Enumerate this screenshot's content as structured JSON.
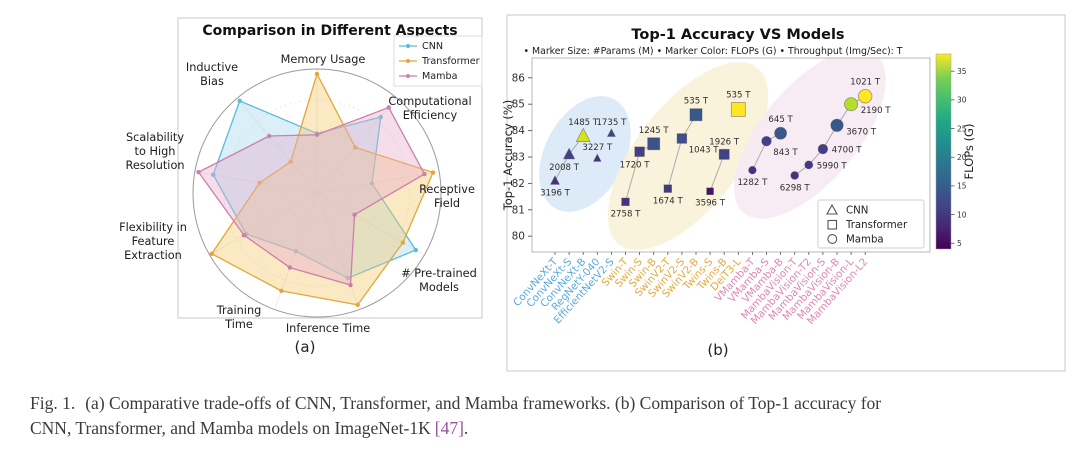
{
  "caption": {
    "fig_label": "Fig. 1.",
    "line1": "(a) Comparative trade-offs of CNN, Transformer, and Mamba frameworks. (b) Comparison of Top-1 accuracy for",
    "line2": "CNN, Transformer, and Mamba models on ImageNet-1K",
    "reference": "[47]",
    "suffix": "."
  },
  "panel_a": {
    "label": "(a)",
    "legend": [
      {
        "label": "CNN",
        "color": "#58bcd9"
      },
      {
        "label": "Transformer",
        "color": "#e4a639"
      },
      {
        "label": "Mamba",
        "color": "#cb7fad"
      }
    ]
  },
  "panel_b": {
    "label": "(b)"
  },
  "chart_data": [
    {
      "type": "radar",
      "title": "Comparison in Different Aspects",
      "axes": [
        "Memory Usage",
        "Computational Efficiency",
        "Receptive Field",
        "# Pre-trained Models",
        "Inference Time",
        "Training Time",
        "Flexibility in Feature Extraction",
        "Scalability to High Resolution",
        "Inductive Bias"
      ],
      "axes_lines": [
        [
          "Memory Usage"
        ],
        [
          "Computational",
          "Efficiency"
        ],
        [
          "Receptive",
          "Field"
        ],
        [
          "# Pre-trained",
          "Models"
        ],
        [
          "Inference Time"
        ],
        [
          "Training",
          "Time"
        ],
        [
          "Flexibility in",
          "Feature",
          "Extraction"
        ],
        [
          "Scalability",
          "to High",
          "Resolution"
        ],
        [
          "Inductive",
          "Bias"
        ]
      ],
      "scale": [
        0,
        1
      ],
      "legend_position": "top-right",
      "series": [
        {
          "name": "CNN",
          "color": "#58bcd9",
          "fill": "#a6d9ee",
          "values": [
            0.48,
            0.8,
            0.45,
            0.92,
            0.73,
            0.5,
            0.66,
            0.85,
            0.97
          ]
        },
        {
          "name": "Transformer",
          "color": "#e4a639",
          "fill": "#f4ca70",
          "values": [
            0.96,
            0.48,
            0.95,
            0.8,
            0.96,
            0.84,
            0.98,
            0.47,
            0.33
          ]
        },
        {
          "name": "Mamba",
          "color": "#cb7fad",
          "fill": "#e7aecd",
          "values": [
            0.47,
            0.9,
            0.88,
            0.35,
            0.79,
            0.64,
            0.68,
            0.97,
            0.6
          ]
        }
      ]
    },
    {
      "type": "scatter",
      "title": "Top-1 Accuracy VS Models",
      "subtitle": "• Marker Size: #Params (M) • Marker Color: FLOPs (G) • Throughput (Img/Sec): T",
      "ylabel": "Top-1 Accuracy (%)",
      "ylim": [
        79.4,
        86.75
      ],
      "yticks": [
        80,
        81,
        82,
        83,
        84,
        85,
        86
      ],
      "colorbar": {
        "label": "FLOPs (G)",
        "ticks": [
          5,
          10,
          15,
          20,
          25,
          30,
          35
        ],
        "vmin": 4,
        "vmax": 38
      },
      "families": [
        {
          "id": "cnn",
          "label": "CNN",
          "marker": "triangle",
          "tick_color": "#58aadf"
        },
        {
          "id": "transformer",
          "label": "Transformer",
          "marker": "square",
          "tick_color": "#e5a83b"
        },
        {
          "id": "mamba",
          "label": "Mamba",
          "marker": "circle",
          "tick_color": "#de86b2"
        }
      ],
      "legend": [
        {
          "marker": "triangle",
          "label": "CNN"
        },
        {
          "marker": "square",
          "label": "Transformer"
        },
        {
          "marker": "circle",
          "label": "Mamba"
        }
      ],
      "points": [
        {
          "model": "ConvNeXt-T",
          "family": "cnn",
          "accuracy": 82.1,
          "throughput": "3196 T",
          "size": 3.8,
          "color": "#46327e",
          "label_pos": "below"
        },
        {
          "model": "ConvNeXt-S",
          "family": "cnn",
          "accuracy": 83.1,
          "throughput": "2008 T",
          "size": 4.8,
          "color": "#424186",
          "label_pos": "below-left"
        },
        {
          "model": "ConvNeXt-B",
          "family": "cnn",
          "accuracy": 83.8,
          "throughput": "1485 T",
          "size": 6,
          "color": "#d8e219",
          "label_pos": "above"
        },
        {
          "model": "RegNetY-040",
          "family": "cnn",
          "accuracy": 82.95,
          "throughput": "3227 T",
          "size": 3.2,
          "color": "#46327e",
          "label_pos": "above"
        },
        {
          "model": "EfficientNetV2-S",
          "family": "cnn",
          "accuracy": 83.9,
          "throughput": "1735 T",
          "size": 3.4,
          "color": "#414487",
          "label_pos": "above"
        },
        {
          "model": "Swin-T",
          "family": "transformer",
          "accuracy": 81.3,
          "throughput": "2758 T",
          "size": 3.8,
          "color": "#46327e",
          "label_pos": "below"
        },
        {
          "model": "Swin-S",
          "family": "transformer",
          "accuracy": 83.2,
          "throughput": "1720 T",
          "size": 4.8,
          "color": "#424186",
          "label_pos": "below-left"
        },
        {
          "model": "Swin-B",
          "family": "transformer",
          "accuracy": 83.5,
          "throughput": "1245 T",
          "size": 6,
          "color": "#3d528b",
          "label_pos": "above"
        },
        {
          "model": "SwinV2-T",
          "family": "transformer",
          "accuracy": 81.8,
          "throughput": "1674 T",
          "size": 3.8,
          "color": "#453882",
          "label_pos": "below"
        },
        {
          "model": "SwinV2-S",
          "family": "transformer",
          "accuracy": 83.7,
          "throughput": "1043 T",
          "size": 4.8,
          "color": "#3d4e8a",
          "label_pos": "below-right"
        },
        {
          "model": "SwinV2-B",
          "family": "transformer",
          "accuracy": 84.6,
          "throughput": "535 T",
          "size": 6,
          "color": "#38588c",
          "label_pos": "above"
        },
        {
          "model": "Twins-S",
          "family": "transformer",
          "accuracy": 81.7,
          "throughput": "3596 T",
          "size": 3.4,
          "color": "#471365",
          "label_pos": "below"
        },
        {
          "model": "Twins-B",
          "family": "transformer",
          "accuracy": 83.1,
          "throughput": "1926 T",
          "size": 5,
          "color": "#414287",
          "label_pos": "above"
        },
        {
          "model": "DeiT3-L",
          "family": "transformer",
          "accuracy": 84.8,
          "throughput": "535 T",
          "size": 7,
          "color": "#fde725",
          "label_pos": "above"
        },
        {
          "model": "VMamba-T",
          "family": "mamba",
          "accuracy": 82.5,
          "throughput": "1282 T",
          "size": 3.8,
          "color": "#46327e",
          "label_pos": "below"
        },
        {
          "model": "VMamba-S",
          "family": "mamba",
          "accuracy": 83.6,
          "throughput": "843 T",
          "size": 4.8,
          "color": "#424186",
          "label_pos": "below-right"
        },
        {
          "model": "VMamba-B",
          "family": "mamba",
          "accuracy": 83.9,
          "throughput": "645 T",
          "size": 6,
          "color": "#38588c",
          "label_pos": "above"
        },
        {
          "model": "MambaVision-T",
          "family": "mamba",
          "accuracy": 82.3,
          "throughput": "6298 T",
          "size": 3.9,
          "color": "#46327e",
          "label_pos": "below"
        },
        {
          "model": "MambaVision-T2",
          "family": "mamba",
          "accuracy": 82.7,
          "throughput": "5990 T",
          "size": 4,
          "color": "#453882",
          "label_pos": "right"
        },
        {
          "model": "MambaVision-S",
          "family": "mamba",
          "accuracy": 83.3,
          "throughput": "4700 T",
          "size": 4.8,
          "color": "#433e85",
          "label_pos": "right"
        },
        {
          "model": "MambaVision-B",
          "family": "mamba",
          "accuracy": 84.2,
          "throughput": "3670 T",
          "size": 6.2,
          "color": "#38588c",
          "label_pos": "right-below"
        },
        {
          "model": "MambaVision-L",
          "family": "mamba",
          "accuracy": 85.0,
          "throughput": "2190 T",
          "size": 6.6,
          "color": "#b5de2b",
          "label_pos": "right-below"
        },
        {
          "model": "MambaVision-L2",
          "family": "mamba",
          "accuracy": 85.3,
          "throughput": "1021 T",
          "size": 6.8,
          "color": "#fde725",
          "label_pos": "above"
        }
      ],
      "chains": [
        [
          0,
          1,
          2
        ],
        [
          5,
          6,
          7
        ],
        [
          8,
          9,
          10
        ],
        [
          11,
          12
        ],
        [
          14,
          15,
          16
        ],
        [
          17,
          18,
          19,
          20,
          21,
          22
        ]
      ]
    }
  ]
}
